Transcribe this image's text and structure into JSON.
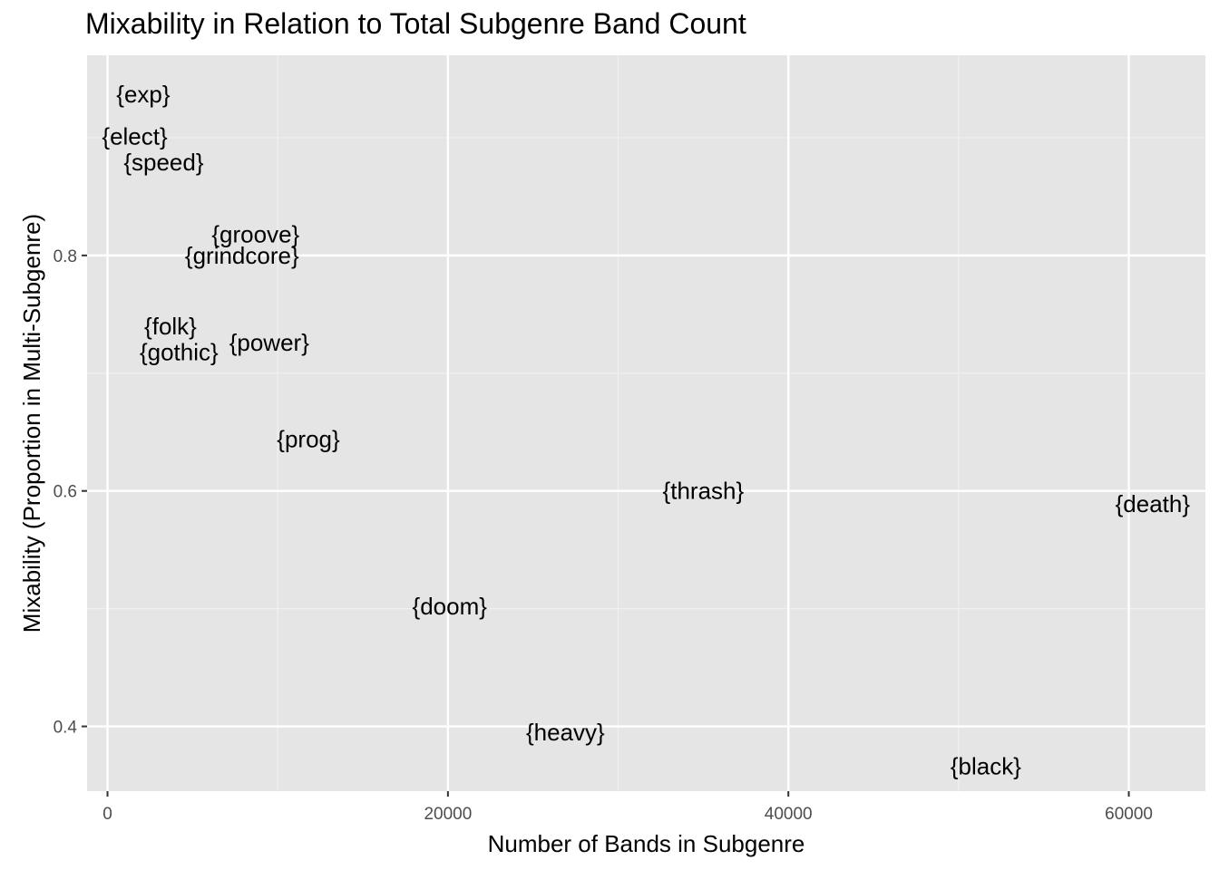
{
  "chart_data": {
    "type": "scatter",
    "title": "Mixability in Relation to Total Subgenre Band Count",
    "xlabel": "Number of Bands in Subgenre",
    "ylabel": "Mixability (Proportion in Multi-Subgenre)",
    "xlim": [
      -1200,
      64500
    ],
    "ylim": [
      0.345,
      0.97
    ],
    "x_ticks": [
      0,
      20000,
      40000,
      60000
    ],
    "x_tick_labels": [
      "0",
      "20000",
      "40000",
      "60000"
    ],
    "y_ticks": [
      0.4,
      0.6,
      0.8
    ],
    "y_tick_labels": [
      "0.4",
      "0.6",
      "0.8"
    ],
    "x_minor": [
      10000,
      30000,
      50000
    ],
    "y_minor": [
      0.5,
      0.7,
      0.9
    ],
    "grid": true,
    "points": [
      {
        "label": "{exp}",
        "x": 2100,
        "y": 0.937
      },
      {
        "label": "{elect}",
        "x": 1600,
        "y": 0.901
      },
      {
        "label": "{speed}",
        "x": 3300,
        "y": 0.879
      },
      {
        "label": "{groove}",
        "x": 8700,
        "y": 0.818
      },
      {
        "label": "{grindcore}",
        "x": 7900,
        "y": 0.8
      },
      {
        "label": "{folk}",
        "x": 3700,
        "y": 0.74
      },
      {
        "label": "{gothic}",
        "x": 4200,
        "y": 0.718
      },
      {
        "label": "{power}",
        "x": 9500,
        "y": 0.726
      },
      {
        "label": "{prog}",
        "x": 11800,
        "y": 0.644
      },
      {
        "label": "{thrash}",
        "x": 35000,
        "y": 0.6
      },
      {
        "label": "{death}",
        "x": 61400,
        "y": 0.589
      },
      {
        "label": "{doom}",
        "x": 20100,
        "y": 0.502
      },
      {
        "label": "{heavy}",
        "x": 26900,
        "y": 0.395
      },
      {
        "label": "{black}",
        "x": 51600,
        "y": 0.366
      }
    ]
  },
  "colors": {
    "panel_background": "#e5e5e5",
    "grid_major": "#ffffff",
    "grid_minor": "#f0f0f0",
    "tick_label": "#4d4d4d",
    "text": "#000000"
  }
}
